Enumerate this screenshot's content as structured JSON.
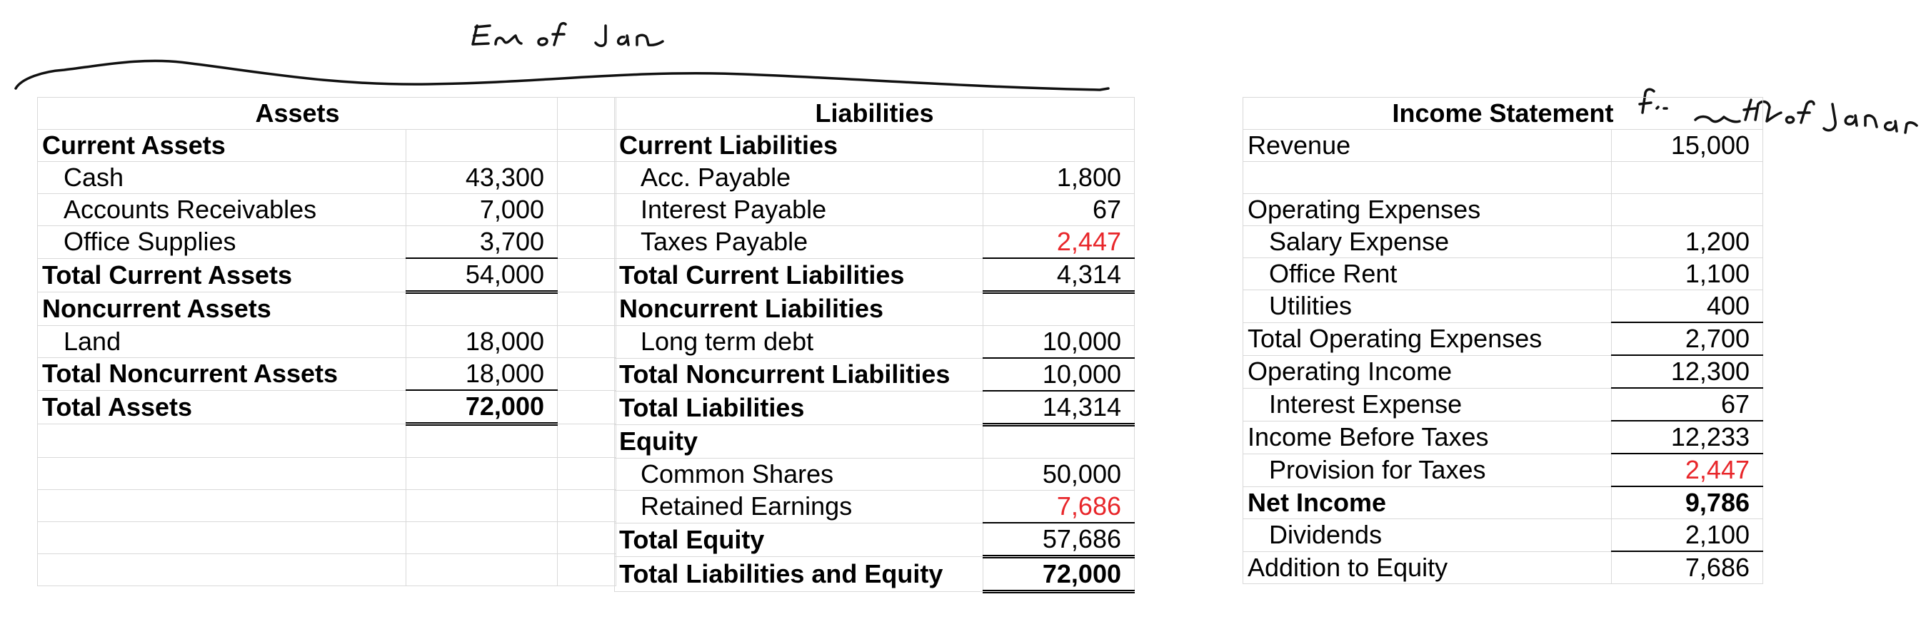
{
  "annotations": {
    "top_note": "End of Jan",
    "income_note": "for month of January"
  },
  "assets": {
    "header": "Assets",
    "rows": [
      {
        "label": "Current Assets",
        "value": "",
        "bold": true
      },
      {
        "label": "Cash",
        "value": "43,300",
        "indent": true
      },
      {
        "label": "Accounts Receivables",
        "value": "7,000",
        "indent": true
      },
      {
        "label": "Office Supplies",
        "value": "3,700",
        "indent": true,
        "underline": true
      },
      {
        "label": "Total Current Assets",
        "value": "54,000",
        "bold": true,
        "double": true
      },
      {
        "label": "Noncurrent Assets",
        "value": "",
        "bold": true
      },
      {
        "label": "Land",
        "value": "18,000",
        "indent": true
      },
      {
        "label": "Total Noncurrent Assets",
        "value": "18,000",
        "bold": true,
        "underline": true
      },
      {
        "label": "Total Assets",
        "value": "72,000",
        "bold": true,
        "boldValue": true,
        "double": true
      },
      {
        "label": "",
        "value": ""
      },
      {
        "label": "",
        "value": ""
      },
      {
        "label": "",
        "value": ""
      },
      {
        "label": "",
        "value": ""
      },
      {
        "label": "",
        "value": ""
      }
    ]
  },
  "liabilities": {
    "header": "Liabilities",
    "rows": [
      {
        "label": "Current Liabilities",
        "value": "",
        "bold": true
      },
      {
        "label": "Acc. Payable",
        "value": "1,800",
        "indent": true
      },
      {
        "label": "Interest Payable",
        "value": "67",
        "indent": true
      },
      {
        "label": "Taxes Payable",
        "value": "2,447",
        "indent": true,
        "red": true,
        "underline": true
      },
      {
        "label": "Total Current Liabilities",
        "value": "4,314",
        "bold": true,
        "double": true
      },
      {
        "label": "Noncurrent Liabilities",
        "value": "",
        "bold": true
      },
      {
        "label": "Long term debt",
        "value": "10,000",
        "indent": true,
        "underline": true
      },
      {
        "label": "Total Noncurrent Liabilities",
        "value": "10,000",
        "bold": true,
        "underline": true
      },
      {
        "label": "Total Liabilities",
        "value": "14,314",
        "bold": true,
        "double": true
      },
      {
        "label": "Equity",
        "value": "",
        "bold": true
      },
      {
        "label": "Common Shares",
        "value": "50,000",
        "indent": true
      },
      {
        "label": "Retained Earnings",
        "value": "7,686",
        "indent": true,
        "red": true,
        "underline": true
      },
      {
        "label": "Total Equity",
        "value": "57,686",
        "bold": true,
        "double": true
      },
      {
        "label": "Total Liabilities and Equity",
        "value": "72,000",
        "bold": true,
        "boldValue": true,
        "double": true
      }
    ]
  },
  "income": {
    "header": "Income Statement",
    "rows": [
      {
        "label": "Revenue",
        "value": "15,000"
      },
      {
        "label": "",
        "value": ""
      },
      {
        "label": "Operating Expenses",
        "value": ""
      },
      {
        "label": "Salary Expense",
        "value": "1,200",
        "indent": true
      },
      {
        "label": "Office Rent",
        "value": "1,100",
        "indent": true
      },
      {
        "label": "Utilities",
        "value": "400",
        "indent": true,
        "underline": true
      },
      {
        "label": "Total Operating Expenses",
        "value": "2,700",
        "underline": true
      },
      {
        "label": "Operating Income",
        "value": "12,300",
        "underline": true
      },
      {
        "label": "Interest Expense",
        "value": "67",
        "indent": true,
        "underline": true
      },
      {
        "label": "Income Before Taxes",
        "value": "12,233",
        "underline": true
      },
      {
        "label": "Provision for Taxes",
        "value": "2,447",
        "indent": true,
        "red": true,
        "underline": true
      },
      {
        "label": "Net Income",
        "value": "9,786",
        "bold": true,
        "boldValue": true
      },
      {
        "label": "Dividends",
        "value": "2,100",
        "indent": true,
        "underline": true
      },
      {
        "label": "Addition to Equity",
        "value": "7,686"
      }
    ]
  }
}
